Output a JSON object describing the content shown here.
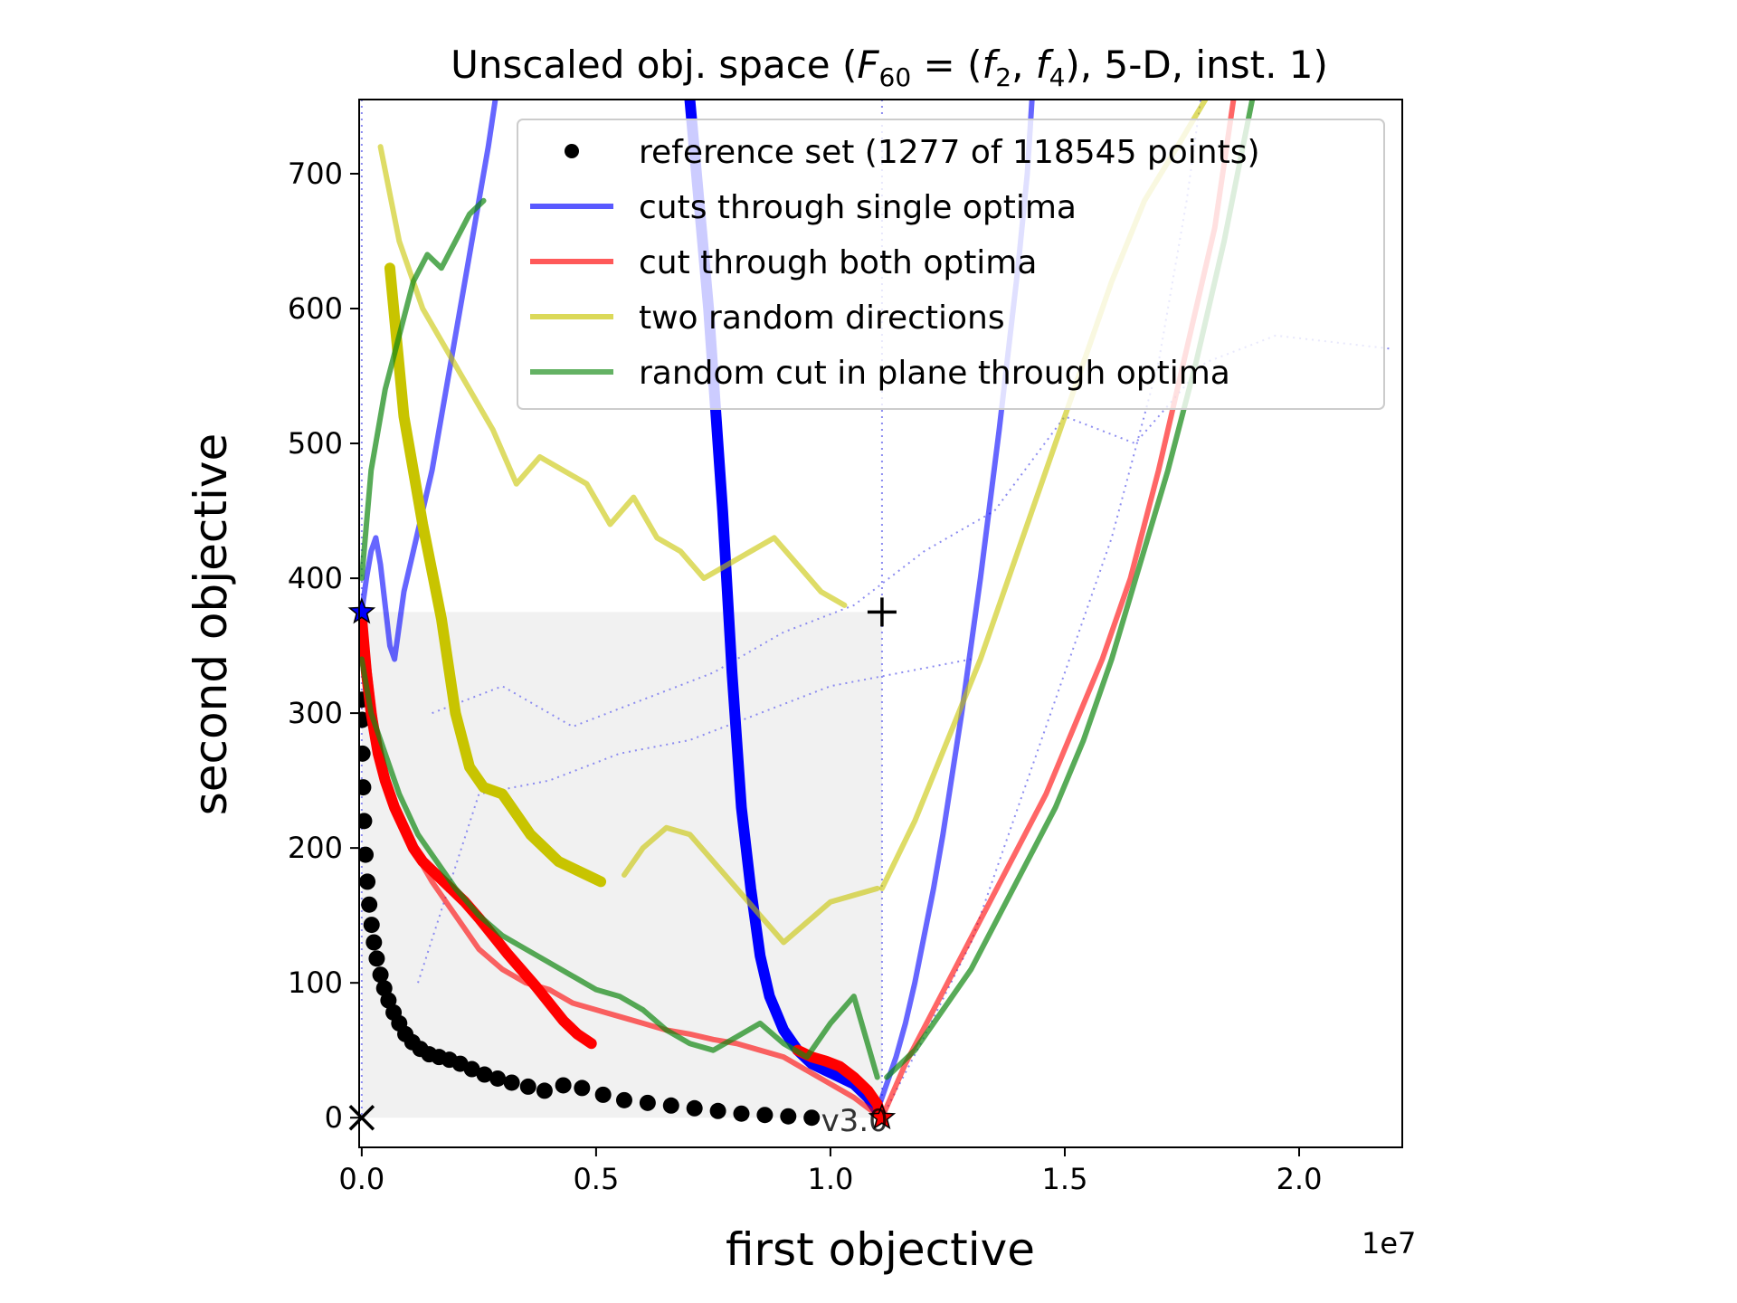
{
  "chart_data": {
    "type": "line",
    "title": "Unscaled obj. space (F60 = (f2, f4), 5-D, inst. 1)",
    "title_parts": {
      "prefix": "Unscaled obj. space (",
      "F": "F",
      "F_sub": "60",
      "eq": " = (",
      "f": "f",
      "f2_sub": "2",
      "comma": ", ",
      "f4_sub": "4",
      "suffix": "), 5-D, inst. 1)"
    },
    "xlabel": "first objective",
    "ylabel": "second objective",
    "x_offset_label": "1e7",
    "x_offset_factor": 10000000,
    "xlim": [
      -55000,
      22200000
    ],
    "ylim": [
      -22,
      755
    ],
    "x_ticks": [
      0,
      5000000,
      10000000,
      15000000,
      20000000
    ],
    "x_tick_labels": [
      "0.0",
      "0.5",
      "1.0",
      "1.5",
      "2.0"
    ],
    "y_ticks": [
      0,
      100,
      200,
      300,
      400,
      500,
      600,
      700
    ],
    "y_tick_labels": [
      "0",
      "100",
      "200",
      "300",
      "400",
      "500",
      "600",
      "700"
    ],
    "grid": false,
    "legend_position": "top-right",
    "watermark": "v3.0",
    "colors": {
      "reference": "#000000",
      "single_optima": "#0000ff",
      "both_optima": "#ff0000",
      "random_directions": "#c8c400",
      "plane_cut": "#118811",
      "shade": "#ebebeb",
      "dotted": "#8c8cf0"
    },
    "markers": {
      "ideal": {
        "symbol": "x",
        "x": 0,
        "y": 0
      },
      "nadir": {
        "symbol": "+",
        "x": 11100000,
        "y": 375
      },
      "optimum_f1": {
        "symbol": "star",
        "x": 0,
        "y": 375
      },
      "optimum_f2": {
        "symbol": "star",
        "x": 11100000,
        "y": 0
      }
    },
    "series": [
      {
        "name": "reference set (1277 of 118545 points)",
        "style": "points",
        "x": [
          0,
          5000,
          15000,
          30000,
          50000,
          80000,
          120000,
          160000,
          210000,
          260000,
          320000,
          400000,
          480000,
          570000,
          680000,
          800000,
          930000,
          1080000,
          1250000,
          1440000,
          1650000,
          1870000,
          2100000,
          2350000,
          2620000,
          2900000,
          3200000,
          3550000,
          3900000,
          4300000,
          4700000,
          5150000,
          5600000,
          6100000,
          6600000,
          7100000,
          7600000,
          8100000,
          8600000,
          9100000,
          9600000
        ],
        "y": [
          310,
          295,
          270,
          245,
          220,
          195,
          175,
          158,
          143,
          130,
          118,
          106,
          96,
          87,
          78,
          70,
          62,
          56,
          51,
          47,
          45,
          43,
          40,
          36,
          32,
          29,
          26,
          23,
          20,
          24,
          22,
          17,
          13,
          11,
          9,
          7,
          5,
          3,
          2,
          1,
          0
        ]
      },
      {
        "name": "cuts through single optima",
        "style": "line",
        "width": 6,
        "alpha": 0.6,
        "x": [
          11050000,
          11200000,
          11400000,
          11600000,
          11800000,
          12000000,
          12200000,
          12400000,
          12600000,
          12800000,
          13000000,
          13200000,
          13400000,
          13600000,
          13800000,
          14000000,
          14200000,
          14300000
        ],
        "y": [
          10,
          25,
          45,
          70,
          100,
          135,
          170,
          210,
          255,
          300,
          350,
          400,
          455,
          510,
          570,
          630,
          700,
          755
        ]
      },
      {
        "name": "",
        "style": "line",
        "width": 12,
        "alpha": 1.0,
        "x": [
          7000000,
          7400000,
          7700000,
          7900000,
          8100000,
          8300000,
          8500000,
          8700000,
          9000000,
          9300000,
          9600000,
          9900000,
          10200000,
          10500000,
          10800000,
          11000000
        ],
        "y": [
          755,
          600,
          450,
          330,
          230,
          170,
          120,
          90,
          65,
          50,
          40,
          35,
          30,
          25,
          15,
          5
        ]
      },
      {
        "name": "",
        "style": "line",
        "width": 6,
        "alpha": 0.6,
        "x": [
          0,
          100000,
          200000,
          300000,
          400000,
          500000,
          600000,
          700000,
          900000,
          1100000,
          1300000,
          1500000,
          1700000,
          1900000,
          2100000,
          2300000,
          2500000,
          2700000,
          2850000
        ],
        "y": [
          375,
          400,
          420,
          430,
          410,
          380,
          350,
          340,
          390,
          420,
          450,
          480,
          520,
          560,
          600,
          640,
          680,
          720,
          755
        ]
      },
      {
        "name": "cut through both optima",
        "style": "line",
        "width": 6,
        "alpha": 0.6,
        "x": [
          0,
          300000,
          600000,
          1000000,
          1500000,
          2000000,
          2500000,
          3000000,
          3500000,
          4000000,
          4500000,
          5000000,
          5500000,
          6000000,
          6500000,
          7000000,
          7500000,
          8000000,
          8500000,
          9000000,
          9500000,
          10000000,
          10500000,
          11000000
        ],
        "y": [
          375,
          290,
          240,
          205,
          175,
          150,
          125,
          110,
          100,
          95,
          85,
          80,
          75,
          70,
          65,
          62,
          58,
          55,
          50,
          45,
          35,
          25,
          15,
          2
        ]
      },
      {
        "name": "",
        "style": "line",
        "width": 12,
        "alpha": 1.0,
        "x": [
          0,
          100000,
          200000,
          350000,
          500000,
          700000,
          900000,
          1100000,
          1300000,
          1600000,
          1900000,
          2200000,
          2500000,
          2800000,
          3100000,
          3400000,
          3700000,
          4000000,
          4300000,
          4600000,
          4900000
        ],
        "y": [
          370,
          330,
          300,
          270,
          250,
          230,
          215,
          200,
          190,
          180,
          170,
          160,
          148,
          135,
          122,
          110,
          98,
          85,
          72,
          62,
          55
        ]
      },
      {
        "name": "",
        "style": "line",
        "width": 12,
        "alpha": 1.0,
        "x": [
          9300000,
          9600000,
          9900000,
          10200000,
          10500000,
          10800000,
          11000000,
          11100000
        ],
        "y": [
          50,
          45,
          42,
          38,
          30,
          20,
          10,
          0
        ]
      },
      {
        "name": "",
        "style": "line",
        "width": 6,
        "alpha": 0.6,
        "x": [
          11100000,
          11600000,
          12200000,
          12800000,
          13400000,
          14000000,
          14600000,
          15200000,
          15800000,
          16400000,
          17000000,
          17600000,
          18200000,
          18600000
        ],
        "y": [
          0,
          40,
          80,
          120,
          160,
          200,
          240,
          290,
          340,
          400,
          480,
          570,
          660,
          755
        ]
      },
      {
        "name": "two random directions",
        "style": "line",
        "width": 6,
        "alpha": 0.6,
        "x": [
          400000,
          800000,
          1300000,
          1800000,
          2300000,
          2800000,
          3300000,
          3800000,
          4300000,
          4800000,
          5300000,
          5800000,
          6300000,
          6800000,
          7300000,
          7800000,
          8300000,
          8800000,
          9300000,
          9800000,
          10300000
        ],
        "y": [
          720,
          650,
          600,
          570,
          540,
          510,
          470,
          490,
          480,
          470,
          440,
          460,
          430,
          420,
          400,
          410,
          420,
          430,
          410,
          390,
          380
        ]
      },
      {
        "name": "",
        "style": "line",
        "width": 12,
        "alpha": 1.0,
        "x": [
          600000,
          900000,
          1300000,
          1700000,
          2000000,
          2300000,
          2600000,
          3000000,
          3300000,
          3600000,
          3900000,
          4200000,
          4500000,
          4800000,
          5100000
        ],
        "y": [
          630,
          520,
          440,
          370,
          300,
          260,
          245,
          240,
          225,
          210,
          200,
          190,
          185,
          180,
          175
        ]
      },
      {
        "name": "",
        "style": "line",
        "width": 6,
        "alpha": 0.6,
        "x": [
          5600000,
          6000000,
          6500000,
          7000000,
          7500000,
          8000000,
          8500000,
          9000000,
          9500000,
          10000000,
          10500000,
          11000000
        ],
        "y": [
          180,
          200,
          215,
          210,
          190,
          170,
          150,
          130,
          145,
          160,
          165,
          170
        ]
      },
      {
        "name": "",
        "style": "line",
        "width": 6,
        "alpha": 0.6,
        "x": [
          11100000,
          11800000,
          12500000,
          13200000,
          13900000,
          14600000,
          15300000,
          16000000,
          16700000,
          17400000,
          18000000
        ],
        "y": [
          170,
          220,
          280,
          340,
          410,
          480,
          550,
          620,
          680,
          720,
          755
        ]
      },
      {
        "name": "random cut in plane through optima",
        "style": "line",
        "width": 6,
        "alpha": 0.7,
        "x": [
          0,
          200000,
          500000,
          800000,
          1200000,
          1600000,
          2000000,
          2500000,
          3000000,
          3500000,
          4000000,
          4500000,
          5000000,
          5500000,
          6000000,
          6500000,
          7000000,
          7500000,
          8000000,
          8500000,
          9000000,
          9500000,
          10000000,
          10500000,
          11000000
        ],
        "y": [
          340,
          300,
          270,
          240,
          210,
          190,
          170,
          150,
          135,
          125,
          115,
          105,
          95,
          90,
          80,
          65,
          55,
          50,
          60,
          70,
          55,
          45,
          70,
          90,
          30
        ]
      },
      {
        "name": "",
        "style": "line",
        "width": 6,
        "alpha": 0.7,
        "x": [
          11200000,
          11800000,
          12400000,
          13000000,
          13600000,
          14200000,
          14800000,
          15400000,
          16000000,
          16600000,
          17200000,
          17800000,
          18400000,
          19000000
        ],
        "y": [
          30,
          50,
          80,
          110,
          150,
          190,
          230,
          280,
          340,
          410,
          480,
          560,
          650,
          755
        ]
      },
      {
        "name": "",
        "style": "line",
        "width": 6,
        "alpha": 0.7,
        "x": [
          0,
          200000,
          500000,
          800000,
          1100000,
          1400000,
          1700000,
          2000000,
          2300000,
          2600000
        ],
        "y": [
          400,
          480,
          540,
          580,
          620,
          640,
          630,
          650,
          670,
          680
        ]
      }
    ]
  }
}
